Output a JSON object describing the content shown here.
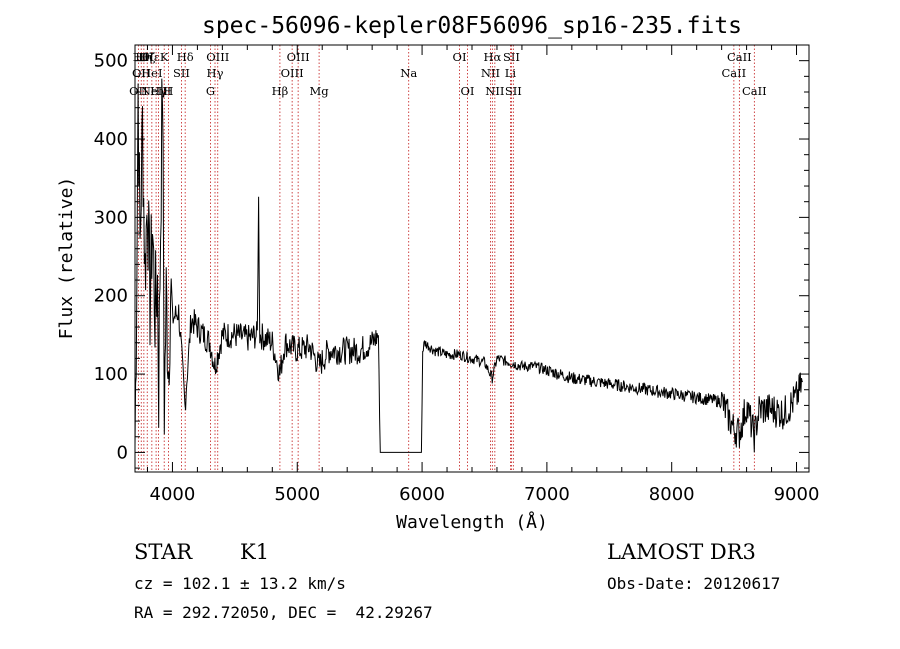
{
  "chart_data": {
    "type": "line",
    "title": "spec-56096-kepler08F56096_sp16-235.fits",
    "xlabel": "Wavelength (Å)",
    "ylabel": "Flux (relative)",
    "xlim": [
      3700,
      9100
    ],
    "ylim": [
      -25,
      520
    ],
    "x_ticks": [
      4000,
      5000,
      6000,
      7000,
      8000,
      9000
    ],
    "y_ticks": [
      0,
      100,
      200,
      300,
      400,
      500
    ],
    "spectrum_anchors": [
      [
        3700,
        10
      ],
      [
        3710,
        150
      ],
      [
        3725,
        470
      ],
      [
        3740,
        260
      ],
      [
        3760,
        420
      ],
      [
        3780,
        230
      ],
      [
        3800,
        330
      ],
      [
        3820,
        190
      ],
      [
        3840,
        290
      ],
      [
        3860,
        180
      ],
      [
        3880,
        220
      ],
      [
        3890,
        80
      ],
      [
        3900,
        230
      ],
      [
        3920,
        480
      ],
      [
        3935,
        60
      ],
      [
        3950,
        200
      ],
      [
        3968,
        110
      ],
      [
        3985,
        210
      ],
      [
        4000,
        170
      ],
      [
        4050,
        180
      ],
      [
        4100,
        60
      ],
      [
        4150,
        170
      ],
      [
        4200,
        160
      ],
      [
        4250,
        150
      ],
      [
        4300,
        140
      ],
      [
        4340,
        110
      ],
      [
        4400,
        150
      ],
      [
        4500,
        150
      ],
      [
        4600,
        145
      ],
      [
        4680,
        150
      ],
      [
        4690,
        320
      ],
      [
        4700,
        150
      ],
      [
        4800,
        140
      ],
      [
        4861,
        100
      ],
      [
        4900,
        140
      ],
      [
        5000,
        130
      ],
      [
        5100,
        135
      ],
      [
        5175,
        110
      ],
      [
        5250,
        130
      ],
      [
        5400,
        130
      ],
      [
        5500,
        130
      ],
      [
        5600,
        140
      ],
      [
        5650,
        150
      ],
      [
        5665,
        0
      ],
      [
        5700,
        0
      ],
      [
        5800,
        0
      ],
      [
        5900,
        0
      ],
      [
        5995,
        0
      ],
      [
        6005,
        130
      ],
      [
        6020,
        140
      ],
      [
        6100,
        130
      ],
      [
        6200,
        125
      ],
      [
        6300,
        125
      ],
      [
        6400,
        120
      ],
      [
        6500,
        115
      ],
      [
        6562,
        95
      ],
      [
        6600,
        120
      ],
      [
        6700,
        115
      ],
      [
        6800,
        110
      ],
      [
        6900,
        110
      ],
      [
        7000,
        105
      ],
      [
        7200,
        95
      ],
      [
        7400,
        90
      ],
      [
        7600,
        85
      ],
      [
        7800,
        80
      ],
      [
        8000,
        75
      ],
      [
        8200,
        70
      ],
      [
        8400,
        65
      ],
      [
        8498,
        30
      ],
      [
        8542,
        25
      ],
      [
        8600,
        60
      ],
      [
        8662,
        20
      ],
      [
        8700,
        55
      ],
      [
        8800,
        55
      ],
      [
        8900,
        50
      ],
      [
        9000,
        70
      ],
      [
        9050,
        90
      ]
    ],
    "absent_flux_value": 0,
    "reference_lines": [
      {
        "wavelength": 3727,
        "labels": [
          "OII"
        ],
        "rows": [
          3
        ]
      },
      {
        "wavelength": 3750,
        "labels": [
          "Hθ",
          "OII"
        ],
        "rows": [
          1,
          2
        ]
      },
      {
        "wavelength": 3771,
        "labels": [
          "Hη"
        ],
        "rows": [
          1
        ]
      },
      {
        "wavelength": 3798,
        "labels": [
          "Hζ"
        ],
        "rows": [
          1
        ]
      },
      {
        "wavelength": 3835,
        "labels": [
          "Hε",
          "HeI"
        ],
        "rows": [
          1,
          2
        ]
      },
      {
        "wavelength": 3869,
        "labels": [
          "NeIII"
        ],
        "rows": [
          3
        ]
      },
      {
        "wavelength": 3889,
        "labels": [
          "Hγ"
        ],
        "rows": [
          3
        ]
      },
      {
        "wavelength": 3934,
        "labels": [
          "K"
        ],
        "rows": [
          1
        ]
      },
      {
        "wavelength": 3968,
        "labels": [
          "H"
        ],
        "rows": [
          3
        ]
      },
      {
        "wavelength": 4072,
        "labels": [
          "SII"
        ],
        "rows": [
          2
        ]
      },
      {
        "wavelength": 4102,
        "labels": [
          "Hδ"
        ],
        "rows": [
          1
        ]
      },
      {
        "wavelength": 4305,
        "labels": [
          "G"
        ],
        "rows": [
          3
        ]
      },
      {
        "wavelength": 4341,
        "labels": [
          "Hγ"
        ],
        "rows": [
          2
        ]
      },
      {
        "wavelength": 4363,
        "labels": [
          "OIII"
        ],
        "rows": [
          1
        ]
      },
      {
        "wavelength": 4861,
        "labels": [
          "Hβ"
        ],
        "rows": [
          3
        ]
      },
      {
        "wavelength": 4959,
        "labels": [
          "OIII"
        ],
        "rows": [
          2
        ]
      },
      {
        "wavelength": 5007,
        "labels": [
          "OIII"
        ],
        "rows": [
          1
        ]
      },
      {
        "wavelength": 5175,
        "labels": [
          "Mg"
        ],
        "rows": [
          3
        ]
      },
      {
        "wavelength": 5893,
        "labels": [
          "Na"
        ],
        "rows": [
          2
        ]
      },
      {
        "wavelength": 6300,
        "labels": [
          "OI"
        ],
        "rows": [
          1
        ]
      },
      {
        "wavelength": 6364,
        "labels": [
          "OI"
        ],
        "rows": [
          3
        ]
      },
      {
        "wavelength": 6548,
        "labels": [
          "NII"
        ],
        "rows": [
          2
        ]
      },
      {
        "wavelength": 6563,
        "labels": [
          "Hα"
        ],
        "rows": [
          1
        ]
      },
      {
        "wavelength": 6583,
        "labels": [
          "NII"
        ],
        "rows": [
          3
        ]
      },
      {
        "wavelength": 6708,
        "labels": [
          "Li"
        ],
        "rows": [
          2
        ]
      },
      {
        "wavelength": 6716,
        "labels": [
          "SII"
        ],
        "rows": [
          1
        ]
      },
      {
        "wavelength": 6731,
        "labels": [
          "SII"
        ],
        "rows": [
          3
        ]
      },
      {
        "wavelength": 8498,
        "labels": [
          "CaII"
        ],
        "rows": [
          2
        ]
      },
      {
        "wavelength": 8542,
        "labels": [
          "CaII"
        ],
        "rows": [
          1
        ]
      },
      {
        "wavelength": 8662,
        "labels": [
          "CaII"
        ],
        "rows": [
          3
        ]
      }
    ]
  },
  "info": {
    "class_label": "STAR",
    "subclass": "K1",
    "survey": "LAMOST DR3",
    "redshift": "cz = 102.1 ± 13.2 km/s",
    "obs_date": "Obs-Date: 20120617",
    "coords": "RA = 292.72050, DEC =  42.29267"
  }
}
